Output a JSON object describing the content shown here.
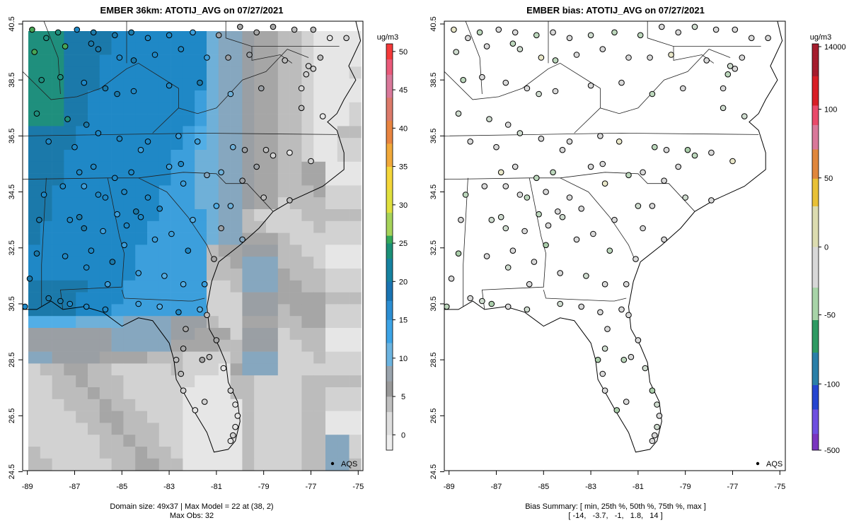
{
  "chart_data": [
    {
      "type": "heatmap",
      "title": "EMBER 36km: ATOTIJ_AVG on 07/27/2021",
      "xlim": [
        -89.2,
        -74.8
      ],
      "ylim": [
        24.5,
        40.6
      ],
      "xticks": [
        -89,
        -87,
        -85,
        -83,
        -81,
        -79,
        -77,
        -75
      ],
      "xtick_labels": [
        "-89",
        "-87",
        "-85",
        "-83",
        "-81",
        "-79",
        "-77",
        "-75"
      ],
      "yticks": [
        24.5,
        26.5,
        28.5,
        30.5,
        32.5,
        34.5,
        36.5,
        38.5,
        40.5
      ],
      "ytick_labels": [
        "24.5",
        "26.5",
        "28.5",
        "30.5",
        "32.5",
        "34.5",
        "36.5",
        "38.5",
        "40.5"
      ],
      "legend_label": "AQS",
      "colorbar": {
        "units": "ug/m3",
        "min": -2,
        "max": 51,
        "ticks": [
          0,
          5,
          10,
          15,
          20,
          25,
          30,
          35,
          40,
          45,
          50
        ],
        "tick_labels": [
          "0",
          "5",
          "10",
          "15",
          "20",
          "25",
          "30",
          "35",
          "40",
          "45",
          "50"
        ]
      },
      "caption_lines": [
        "Domain size: 49x37 | Max Model = 22 at (38, 2)",
        "Max Obs: 32"
      ],
      "domain_size": "49x37",
      "max_model": 22,
      "max_obs": 32
    },
    {
      "type": "scatter",
      "title": "EMBER bias: ATOTIJ_AVG on 07/27/2021",
      "xlim": [
        -89.2,
        -74.8
      ],
      "ylim": [
        24.5,
        40.6
      ],
      "xticks": [
        -89,
        -87,
        -85,
        -83,
        -81,
        -79,
        -77,
        -75
      ],
      "xtick_labels": [
        "-89",
        "-87",
        "-85",
        "-83",
        "-81",
        "-79",
        "-77",
        "-75"
      ],
      "yticks": [
        24.5,
        26.5,
        28.5,
        30.5,
        32.5,
        34.5,
        36.5,
        38.5,
        40.5
      ],
      "ytick_labels": [
        "24.5",
        "26.5",
        "28.5",
        "30.5",
        "32.5",
        "34.5",
        "36.5",
        "38.5",
        "40.5"
      ],
      "legend_label": "AQS",
      "colorbar": {
        "units": "ug/m3",
        "tick_labels": [
          "14000",
          "100",
          "50",
          "0",
          "-50",
          "-100",
          "-500"
        ]
      },
      "caption_lines": [
        "Bias Summary: [ min, 25th %, 50th %, 75th %, max ]",
        "[ -14,   -3.7,   -1,   1.8,   14 ]"
      ],
      "bias_summary": {
        "min": -14,
        "p25": -3.7,
        "median": -1,
        "p75": 1.8,
        "max": 14
      }
    }
  ]
}
